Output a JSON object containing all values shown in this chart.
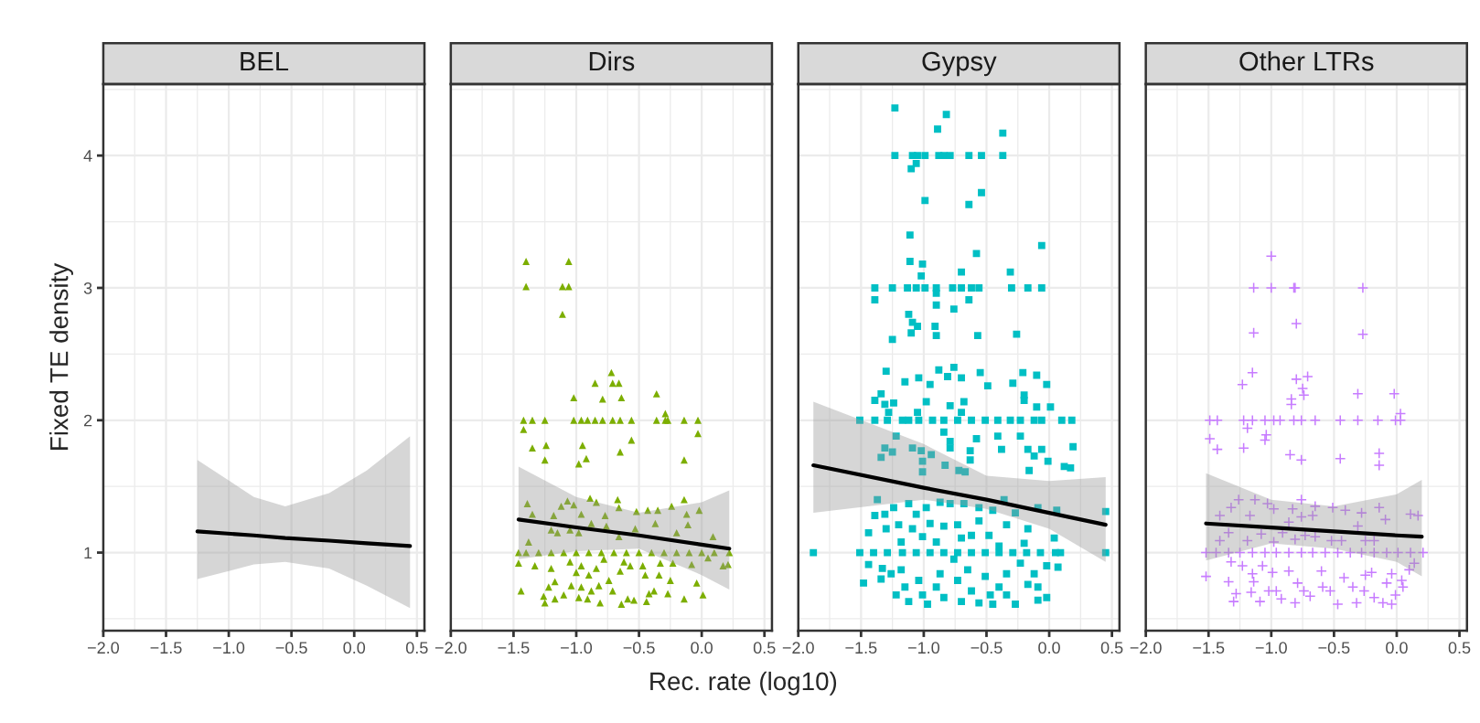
{
  "chart_data": [
    {
      "type": "scatter",
      "title": "BEL",
      "ylabel": "Fixed TE density",
      "xlim": [
        -2.0,
        0.56
      ],
      "xticks": [
        {
          "value": -2.0,
          "label": "−2.0"
        },
        {
          "value": -1.5,
          "label": "−1.5"
        },
        {
          "value": -1.0,
          "label": "−1.0"
        },
        {
          "value": -0.5,
          "label": "−0.5"
        },
        {
          "value": 0.0,
          "label": "0.0"
        },
        {
          "value": 0.5,
          "label": "0.5"
        }
      ],
      "ylim": [
        0.41,
        4.54
      ],
      "yticks": [
        1,
        2,
        3,
        4
      ],
      "grid": true,
      "series": [
        {
          "type": "line",
          "color": "#000000",
          "x": [
            -1.25,
            -0.8,
            -0.55,
            -0.2,
            0.1,
            0.445
          ],
          "values": [
            1.16,
            1.13,
            1.11,
            1.09,
            1.07,
            1.05
          ],
          "lower": [
            0.8,
            0.91,
            0.93,
            0.88,
            0.75,
            0.58
          ],
          "upper": [
            1.7,
            1.42,
            1.35,
            1.45,
            1.62,
            1.88
          ]
        }
      ]
    },
    {
      "type": "scatter",
      "title": "Dirs",
      "xlabel": "Rec. rate (log10)",
      "xlim": [
        -2.0,
        0.56
      ],
      "xticks": [
        {
          "value": -2.0,
          "label": "−2.0"
        },
        {
          "value": -1.5,
          "label": "−1.5"
        },
        {
          "value": -1.0,
          "label": "−1.0"
        },
        {
          "value": -0.5,
          "label": "−0.5"
        },
        {
          "value": 0.0,
          "label": "0.0"
        },
        {
          "value": 0.5,
          "label": "0.5"
        }
      ],
      "ylim": [
        0.41,
        4.54
      ],
      "yticks": [
        1,
        2,
        3,
        4
      ],
      "grid": true,
      "tick_labels": "x",
      "series": [
        {
          "type": "scatter",
          "marker": "triangle",
          "color": "#7cae00",
          "x": [
            -1.4,
            -1.06,
            -1.4,
            -1.11,
            -1.06,
            -1.11,
            -0.72,
            -0.85,
            -0.71,
            -0.66,
            -1.02,
            -0.79,
            -0.64,
            -0.36,
            -1.42,
            -1.35,
            -1.25,
            -1.02,
            -0.96,
            -0.91,
            -0.85,
            -0.79,
            -0.71,
            -0.65,
            -0.56,
            -0.36,
            -0.29,
            -0.27,
            -0.14,
            -0.03,
            -1.42,
            -1.35,
            -1.24,
            -1.25,
            -0.95,
            -0.92,
            -0.98,
            -0.65,
            -0.56,
            -0.14,
            -0.03,
            -0.29,
            -1.39,
            -1.35,
            -1.18,
            -1.12,
            -1.07,
            -1.02,
            -0.96,
            -0.89,
            -0.84,
            -0.77,
            -0.67,
            -0.66,
            -0.52,
            -0.43,
            -0.35,
            -0.24,
            -0.14,
            -0.02,
            -0.12,
            -1.2,
            -1.15,
            -1.05,
            -0.98,
            -0.88,
            -0.76,
            -0.66,
            -0.53,
            -0.37,
            -0.2,
            -0.11,
            0.09,
            -1.38,
            -1.46,
            -1.4,
            -1.3,
            -1.2,
            -1.1,
            -1.0,
            -0.9,
            -0.8,
            -0.7,
            -0.6,
            -0.5,
            -0.4,
            -0.3,
            -0.2,
            -0.1,
            0.0,
            0.1,
            0.22,
            -1.46,
            -1.33,
            -1.2,
            -1.05,
            -0.96,
            -1.0,
            -0.9,
            -0.84,
            -0.78,
            -0.74,
            -0.65,
            -0.62,
            -0.57,
            -0.47,
            -0.45,
            -0.34,
            -0.33,
            -0.25,
            -0.23,
            -0.08,
            -0.04,
            0.05,
            0.17,
            0.21,
            -1.44,
            -1.26,
            -1.25,
            -1.22,
            -1.17,
            -1.17,
            -1.1,
            -1.04,
            -0.98,
            -0.96,
            -0.91,
            -0.88,
            -0.82,
            -0.81,
            -0.71,
            -0.64,
            -0.59,
            -0.54,
            -0.44,
            -0.42,
            -0.38,
            -0.27,
            -0.14,
            0.01
          ],
          "values": [
            3.2,
            3.2,
            3.01,
            3.01,
            3.01,
            2.8,
            2.36,
            2.28,
            2.28,
            2.28,
            2.17,
            2.16,
            2.17,
            2.2,
            2.0,
            2.0,
            2.0,
            2.0,
            2.0,
            2.0,
            2.0,
            2.0,
            2.0,
            2.0,
            2.0,
            2.0,
            2.0,
            2.0,
            2.0,
            2.0,
            1.93,
            1.79,
            1.81,
            1.7,
            1.81,
            1.71,
            1.67,
            1.76,
            1.85,
            1.7,
            1.9,
            2.05,
            1.37,
            1.29,
            1.28,
            1.35,
            1.39,
            1.36,
            1.29,
            1.41,
            1.38,
            1.28,
            1.4,
            1.34,
            1.31,
            1.32,
            1.32,
            1.35,
            1.4,
            1.32,
            1.29,
            1.17,
            1.15,
            1.17,
            1.15,
            1.22,
            1.2,
            1.12,
            1.18,
            1.22,
            1.15,
            1.21,
            1.12,
            1.08,
            1.0,
            1.0,
            1.0,
            1.0,
            1.0,
            1.0,
            1.0,
            1.0,
            1.0,
            1.0,
            1.0,
            1.0,
            1.0,
            1.0,
            1.0,
            1.0,
            1.0,
            1.0,
            0.92,
            0.9,
            0.88,
            0.93,
            0.9,
            0.85,
            0.83,
            0.88,
            0.95,
            0.79,
            0.86,
            0.93,
            0.9,
            0.9,
            0.83,
            0.83,
            0.92,
            0.79,
            0.92,
            0.91,
            0.77,
            0.96,
            0.9,
            0.91,
            0.71,
            0.67,
            0.62,
            0.74,
            0.65,
            0.78,
            0.68,
            0.75,
            0.66,
            0.74,
            0.65,
            0.71,
            0.75,
            0.62,
            0.71,
            0.61,
            0.65,
            0.64,
            0.63,
            0.69,
            0.71,
            0.69,
            0.65,
            0.68
          ]
        },
        {
          "type": "line",
          "color": "#000000",
          "x": [
            -1.46,
            -1.0,
            -0.5,
            0.0,
            0.22
          ],
          "values": [
            1.25,
            1.19,
            1.13,
            1.06,
            1.03
          ],
          "lower": [
            0.95,
            1.01,
            1.03,
            0.83,
            0.72
          ],
          "upper": [
            1.65,
            1.42,
            1.3,
            1.38,
            1.47
          ]
        }
      ]
    },
    {
      "type": "scatter",
      "title": "Gypsy",
      "xlim": [
        -2.0,
        0.56
      ],
      "xticks": [
        {
          "value": -2.0,
          "label": "−2.0"
        },
        {
          "value": -1.5,
          "label": "−1.5"
        },
        {
          "value": -1.0,
          "label": "−1.0"
        },
        {
          "value": -0.5,
          "label": "−0.5"
        },
        {
          "value": 0.0,
          "label": "0.0"
        },
        {
          "value": 0.5,
          "label": "0.5"
        }
      ],
      "ylim": [
        0.41,
        4.54
      ],
      "yticks": [
        1,
        2,
        3,
        4
      ],
      "grid": true,
      "tick_labels": "x",
      "series": [
        {
          "type": "scatter",
          "marker": "square",
          "color": "#00bfc4",
          "x": [
            -1.23,
            -0.82,
            -0.89,
            -0.37,
            -1.23,
            -1.09,
            -1.05,
            -0.99,
            -0.88,
            -0.84,
            -0.79,
            -0.64,
            -0.54,
            -0.37,
            -1.06,
            -1.1,
            -0.99,
            -0.64,
            -0.54,
            -1.11,
            -0.06,
            -0.58,
            -1.11,
            -1.01,
            -0.7,
            -0.31,
            -1.02,
            -1.39,
            -1.25,
            -1.13,
            -1.06,
            -0.99,
            -0.9,
            -0.77,
            -0.7,
            -0.62,
            -0.56,
            -0.3,
            -0.17,
            -0.06,
            -1.39,
            -0.9,
            -0.9,
            -0.64,
            -0.76,
            -1.12,
            -1.09,
            -1.05,
            -1.1,
            -0.91,
            -0.9,
            -0.57,
            -0.26,
            -1.25,
            -1.3,
            -0.88,
            -0.76,
            -0.55,
            -0.21,
            -0.1,
            -1.15,
            -1.04,
            -0.95,
            -0.81,
            -0.7,
            -0.49,
            -0.29,
            -0.02,
            -0.2,
            -0.2,
            -1.34,
            -1.39,
            -1.31,
            -1.24,
            -0.98,
            -0.79,
            -0.68,
            -0.1,
            0.01,
            -1.28,
            -1.05,
            -0.7,
            -1.51,
            -1.39,
            -1.29,
            -1.17,
            -1.12,
            -1.04,
            -0.93,
            -0.84,
            -0.73,
            -0.62,
            -0.51,
            -0.41,
            -0.31,
            -0.23,
            -0.12,
            -0.06,
            0.1,
            0.18,
            -0.84,
            -1.22,
            -0.58,
            -0.41,
            -0.23,
            -0.79,
            -0.79,
            -1.31,
            -1.25,
            -1.09,
            -1.02,
            -0.94,
            -0.63,
            -0.63,
            -0.38,
            -0.17,
            -0.06,
            0.19,
            -0.12,
            -0.01,
            -1.34,
            -1.01,
            -0.83,
            -0.72,
            -0.67,
            -0.16,
            0.12,
            0.17,
            -1.01,
            -1.37,
            -1.24,
            -1.39,
            -1.31,
            -1.12,
            -1.06,
            -0.98,
            -0.87,
            -0.79,
            -0.68,
            -0.56,
            -0.45,
            -0.36,
            -0.27,
            -0.09,
            0.06,
            0.45,
            -1.44,
            -1.3,
            -1.2,
            -1.09,
            -0.95,
            -0.84,
            -0.73,
            -0.62,
            -0.48,
            -0.34,
            -0.17,
            0.04,
            -1.18,
            -0.9,
            -0.7,
            -0.4,
            -0.2,
            -1.01,
            -0.56,
            -1.88,
            -1.51,
            -1.4,
            -1.29,
            -1.17,
            -1.06,
            -0.95,
            -0.84,
            -0.73,
            -0.62,
            -0.51,
            -0.4,
            -0.29,
            -0.18,
            -0.07,
            0.05,
            0.09,
            0.45,
            -1.44,
            -1.48,
            -1.33,
            -1.34,
            -1.26,
            -1.18,
            -1.22,
            -1.15,
            -1.12,
            -1.04,
            -1.01,
            -0.97,
            -0.9,
            -0.87,
            -0.84,
            -0.76,
            -0.73,
            -0.7,
            -0.65,
            -0.62,
            -0.56,
            -0.51,
            -0.47,
            -0.45,
            -0.4,
            -0.34,
            -0.34,
            -0.27,
            -0.23,
            -0.17,
            -0.12,
            -0.09,
            -0.09,
            -0.02,
            -0.02,
            0.07
          ],
          "values": [
            4.36,
            4.31,
            4.2,
            4.17,
            4.0,
            4.0,
            4.0,
            4.0,
            4.0,
            4.0,
            4.0,
            4.0,
            4.0,
            4.0,
            3.94,
            3.9,
            3.66,
            3.63,
            3.72,
            3.4,
            3.32,
            3.26,
            3.2,
            3.18,
            3.12,
            3.12,
            3.09,
            3.0,
            3.0,
            3.0,
            3.0,
            3.0,
            3.0,
            3.0,
            3.0,
            3.0,
            3.0,
            3.0,
            3.0,
            3.0,
            2.91,
            2.96,
            2.87,
            2.91,
            2.84,
            2.8,
            2.74,
            2.71,
            2.66,
            2.71,
            2.64,
            2.64,
            2.65,
            2.61,
            2.37,
            2.38,
            2.4,
            2.36,
            2.36,
            2.34,
            2.29,
            2.32,
            2.27,
            2.33,
            2.32,
            2.26,
            2.28,
            2.27,
            2.19,
            2.15,
            2.2,
            2.15,
            2.12,
            2.13,
            2.14,
            2.11,
            2.14,
            2.1,
            2.1,
            2.06,
            2.06,
            2.06,
            2.0,
            2.0,
            2.0,
            2.0,
            2.0,
            2.0,
            2.0,
            2.0,
            2.0,
            2.0,
            2.0,
            2.0,
            2.0,
            2.0,
            2.0,
            2.0,
            2.0,
            2.0,
            1.91,
            1.88,
            1.86,
            1.88,
            1.88,
            1.84,
            1.79,
            1.79,
            1.76,
            1.79,
            1.77,
            1.74,
            1.77,
            1.7,
            1.78,
            1.78,
            1.78,
            1.8,
            1.73,
            1.69,
            1.72,
            1.69,
            1.66,
            1.62,
            1.61,
            1.62,
            1.65,
            1.64,
            1.61,
            1.4,
            1.34,
            1.28,
            1.29,
            1.37,
            1.29,
            1.34,
            1.38,
            1.37,
            1.37,
            1.34,
            1.32,
            1.4,
            1.3,
            1.34,
            1.32,
            1.31,
            1.15,
            1.18,
            1.21,
            1.18,
            1.22,
            1.2,
            1.21,
            1.13,
            1.13,
            1.21,
            1.18,
            1.11,
            1.08,
            1.08,
            1.11,
            1.05,
            1.07,
            1.12,
            1.24,
            1.0,
            1.0,
            1.0,
            1.0,
            1.0,
            1.0,
            1.0,
            1.0,
            1.0,
            1.0,
            1.0,
            1.0,
            1.0,
            1.0,
            1.0,
            1.0,
            1.0,
            1.0,
            0.91,
            0.77,
            0.88,
            0.8,
            0.84,
            0.87,
            0.68,
            0.74,
            0.63,
            0.79,
            0.68,
            0.61,
            0.74,
            0.84,
            0.66,
            0.95,
            0.79,
            0.63,
            0.87,
            0.71,
            0.62,
            0.82,
            0.68,
            0.61,
            0.74,
            0.84,
            0.68,
            0.61,
            0.92,
            0.76,
            0.84,
            0.74,
            0.64,
            0.66,
            0.9,
            0.89
          ]
        },
        {
          "type": "line",
          "color": "#000000",
          "x": [
            -1.88,
            -1.0,
            -0.5,
            0.0,
            0.45
          ],
          "values": [
            1.66,
            1.49,
            1.4,
            1.3,
            1.21
          ],
          "lower": [
            1.3,
            1.4,
            1.33,
            1.18,
            0.93
          ],
          "upper": [
            2.14,
            1.82,
            1.58,
            1.54,
            1.57
          ]
        }
      ]
    },
    {
      "type": "scatter",
      "title": "Other LTRs",
      "xlim": [
        -2.0,
        0.56
      ],
      "xticks": [
        {
          "value": -2.0,
          "label": "−2.0"
        },
        {
          "value": -1.5,
          "label": "−1.5"
        },
        {
          "value": -1.0,
          "label": "−1.0"
        },
        {
          "value": -0.5,
          "label": "−0.5"
        },
        {
          "value": 0.0,
          "label": "0.0"
        },
        {
          "value": 0.5,
          "label": "0.5"
        }
      ],
      "ylim": [
        0.41,
        4.54
      ],
      "yticks": [
        1,
        2,
        3,
        4
      ],
      "grid": true,
      "tick_labels": "x",
      "series": [
        {
          "type": "scatter",
          "marker": "cross",
          "color": "#c77cff",
          "x": [
            -1.0,
            -1.14,
            -1.0,
            -0.82,
            -0.81,
            -0.27,
            -0.8,
            -1.14,
            -0.27,
            -1.15,
            -1.23,
            -0.8,
            -0.71,
            -0.75,
            -0.74,
            -0.31,
            -0.02,
            -0.84,
            -0.84,
            0.03,
            -1.49,
            -1.43,
            -1.22,
            -1.15,
            -1.05,
            -0.98,
            -0.93,
            -0.82,
            -0.76,
            -0.65,
            -0.45,
            -0.31,
            -0.15,
            -0.01,
            0.03,
            -1.19,
            -1.04,
            -1.05,
            -1.49,
            -1.43,
            -1.22,
            -0.85,
            -0.76,
            -0.45,
            -0.14,
            -0.14,
            -0.76,
            -1.26,
            -1.13,
            -1.03,
            -1.32,
            -1.41,
            -1.17,
            -0.98,
            -0.83,
            -0.65,
            -0.51,
            -0.41,
            -0.28,
            -0.14,
            0.11,
            0.17,
            -0.09,
            -0.86,
            -0.76,
            -0.67,
            -0.31,
            -1.34,
            -1.41,
            -1.19,
            -1.08,
            -0.98,
            -0.91,
            -0.81,
            -0.73,
            -0.65,
            -0.52,
            -0.44,
            -0.25,
            -0.18,
            -1.52,
            -1.44,
            -1.34,
            -1.25,
            -1.15,
            -1.05,
            -0.96,
            -0.86,
            -0.76,
            -0.67,
            -0.57,
            -0.47,
            -0.37,
            -0.28,
            -0.18,
            -0.08,
            0.01,
            0.11,
            0.21,
            -1.52,
            -1.34,
            -1.32,
            -1.23,
            -1.28,
            -1.3,
            -1.15,
            -1.14,
            -1.16,
            -1.09,
            -1.07,
            -0.99,
            -1.02,
            -0.96,
            -0.92,
            -0.86,
            -0.81,
            -0.79,
            -0.74,
            -0.69,
            -0.6,
            -0.59,
            -0.53,
            -0.47,
            -0.42,
            -0.35,
            -0.32,
            -0.25,
            -0.2,
            -0.26,
            -0.18,
            -0.11,
            -0.08,
            -0.04,
            -0.04,
            -0.01,
            0.04,
            0.05,
            0.1,
            0.14
          ],
          "values": [
            3.24,
            3.0,
            3.0,
            3.0,
            3.0,
            3.0,
            2.73,
            2.66,
            2.65,
            2.36,
            2.27,
            2.31,
            2.33,
            2.24,
            2.19,
            2.2,
            2.2,
            2.16,
            2.12,
            2.05,
            2.0,
            2.0,
            2.0,
            2.0,
            2.0,
            2.0,
            2.0,
            2.0,
            2.0,
            2.0,
            2.0,
            2.0,
            2.0,
            2.0,
            2.0,
            1.94,
            1.89,
            1.85,
            1.86,
            1.78,
            1.79,
            1.74,
            1.7,
            1.71,
            1.75,
            1.66,
            1.4,
            1.4,
            1.4,
            1.37,
            1.34,
            1.28,
            1.28,
            1.33,
            1.33,
            1.35,
            1.34,
            1.32,
            1.3,
            1.34,
            1.29,
            1.28,
            1.25,
            1.23,
            1.27,
            1.28,
            1.2,
            1.15,
            1.09,
            1.09,
            1.14,
            1.08,
            1.15,
            1.1,
            1.13,
            1.12,
            1.09,
            1.09,
            1.09,
            1.09,
            1.0,
            1.0,
            1.0,
            1.0,
            1.0,
            1.0,
            1.0,
            1.0,
            1.0,
            1.0,
            1.0,
            1.0,
            1.0,
            1.0,
            1.0,
            1.0,
            1.0,
            1.0,
            1.0,
            0.82,
            0.78,
            0.93,
            0.9,
            0.69,
            0.63,
            0.84,
            0.78,
            0.7,
            0.63,
            0.9,
            0.85,
            0.71,
            0.71,
            0.65,
            0.86,
            0.62,
            0.77,
            0.71,
            0.67,
            0.86,
            0.74,
            0.71,
            0.61,
            0.81,
            0.74,
            0.62,
            0.83,
            0.85,
            0.71,
            0.66,
            0.62,
            0.77,
            0.84,
            0.61,
            0.68,
            0.79,
            0.74,
            0.87,
            0.92
          ]
        },
        {
          "type": "line",
          "color": "#000000",
          "x": [
            -1.52,
            -1.0,
            -0.5,
            0.0,
            0.2
          ],
          "values": [
            1.22,
            1.19,
            1.16,
            1.13,
            1.12
          ],
          "lower": [
            0.94,
            1.07,
            1.03,
            0.93,
            0.82
          ],
          "upper": [
            1.6,
            1.4,
            1.35,
            1.44,
            1.55
          ]
        }
      ]
    }
  ]
}
